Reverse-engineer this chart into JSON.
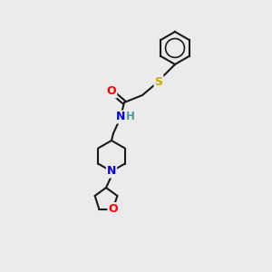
{
  "background_color": "#ebebeb",
  "atom_colors": {
    "C": "#000000",
    "N": "#0000ff",
    "O": "#ff0000",
    "S": "#ccaa00",
    "H": "#4a9a9a"
  },
  "bond_color": "#1a1a1a",
  "figsize": [
    3.0,
    3.0
  ],
  "dpi": 100,
  "ring_r": 18,
  "pip_r": 17,
  "thf_r": 13,
  "lw": 1.5
}
